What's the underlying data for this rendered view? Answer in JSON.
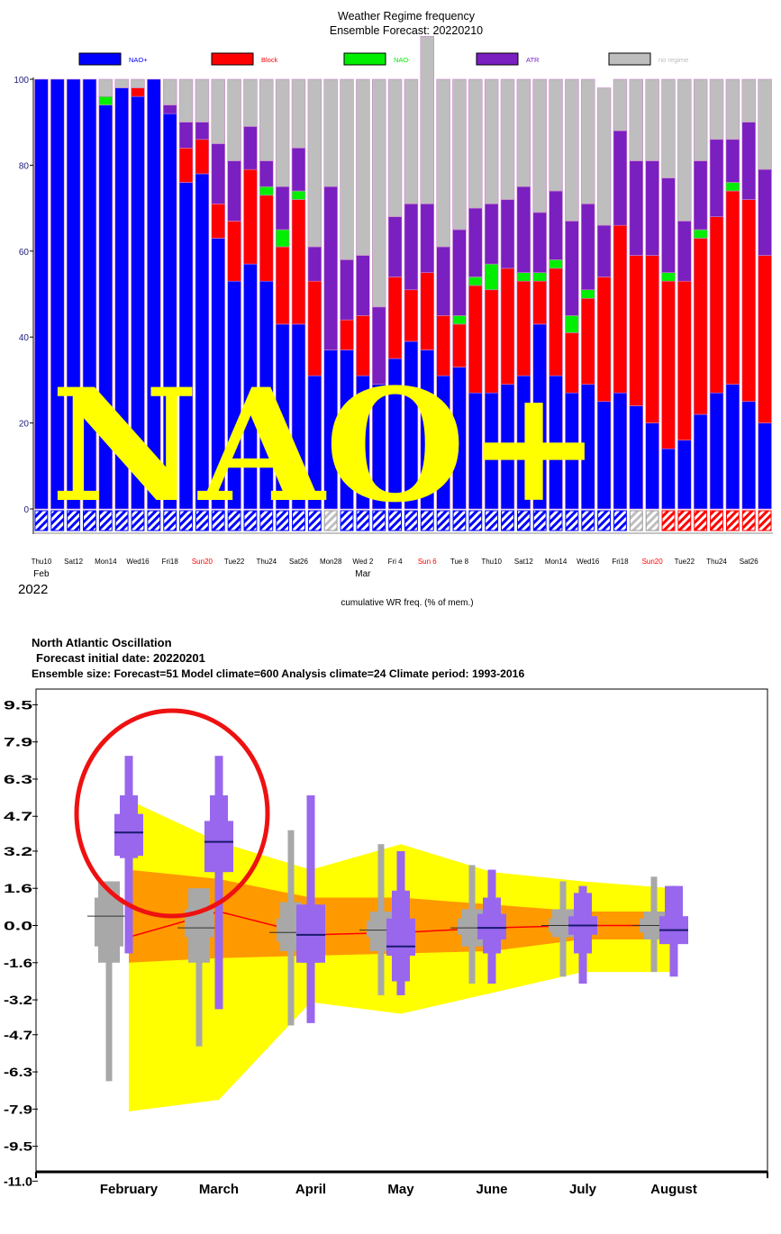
{
  "top": {
    "title": "Weather Regime frequency",
    "subtitle": "Ensemble Forecast: 20220210",
    "legend": [
      {
        "label": "NAO+",
        "color": "#0000ff"
      },
      {
        "label": "Block",
        "color": "#ff0000"
      },
      {
        "label": "NAO-",
        "color": "#00ee00"
      },
      {
        "label": "ATR",
        "color": "#7a1fc0"
      },
      {
        "label": "no regime",
        "color": "#bebebe"
      }
    ],
    "overlay_text": "NAO+",
    "x_caption": "cumulative WR freq. (% of mem.)",
    "year_label": "2022",
    "month_labels": [
      {
        "label": "Feb",
        "day_index": 0
      },
      {
        "label": "Mar",
        "day_index": 20
      }
    ]
  },
  "bottom": {
    "title": "North Atlantic Oscillation",
    "line2": "Forecast initial date: 20220201",
    "line3": "Ensemble size: Forecast=51 Model climate=600 Analysis climate=24   Climate period: 1993-2016"
  },
  "chart_data": [
    {
      "type": "bar",
      "stacked": true,
      "title": "Weather Regime frequency",
      "subtitle": "Ensemble Forecast: 20220210",
      "xlabel": "cumulative WR freq. (% of mem.)",
      "ylim": [
        -10,
        100
      ],
      "yticks": [
        0,
        20,
        40,
        60,
        80,
        100
      ],
      "tick_labels": [
        "Thu10",
        "Sat12",
        "Mon14",
        "Wed16",
        "Fri18",
        "Sun20",
        "Tue22",
        "Thu24",
        "Sat26",
        "Mon28",
        "Wed 2",
        "Fri 4",
        "Sun 6",
        "Tue 8",
        "Thu10",
        "Sat12",
        "Mon14",
        "Wed16",
        "Fri18",
        "Sun20",
        "Tue22",
        "Thu24",
        "Sat26"
      ],
      "red_tick_labels": [
        "Sun20",
        "Sun 6"
      ],
      "series_order": [
        "NAO+",
        "Block",
        "NAO-",
        "ATR",
        "no regime"
      ],
      "series": [
        {
          "name": "NAO+",
          "color": "#0000ff",
          "values": [
            100,
            100,
            100,
            100,
            94,
            98,
            96,
            100,
            92,
            76,
            78,
            63,
            53,
            57,
            53,
            43,
            43,
            31,
            37,
            37,
            31,
            29,
            35,
            39,
            37,
            31,
            33,
            27,
            27,
            29,
            31,
            43,
            31,
            27,
            29,
            25,
            27,
            24,
            20,
            14,
            16,
            22,
            27,
            29,
            25,
            20
          ]
        },
        {
          "name": "Block",
          "color": "#ff0000",
          "values": [
            0,
            0,
            0,
            0,
            0,
            0,
            2,
            0,
            0,
            8,
            8,
            8,
            14,
            22,
            20,
            18,
            29,
            22,
            0,
            7,
            14,
            0,
            19,
            12,
            18,
            14,
            10,
            25,
            24,
            27,
            22,
            10,
            25,
            14,
            20,
            29,
            39,
            35,
            39,
            39,
            37,
            41,
            41,
            45,
            47,
            39
          ]
        },
        {
          "name": "NAO-",
          "color": "#00ee00",
          "values": [
            0,
            0,
            0,
            0,
            2,
            0,
            0,
            0,
            0,
            0,
            0,
            0,
            0,
            0,
            2,
            4,
            2,
            0,
            0,
            0,
            0,
            0,
            0,
            0,
            0,
            0,
            2,
            2,
            6,
            0,
            2,
            2,
            2,
            4,
            2,
            0,
            0,
            0,
            0,
            2,
            0,
            2,
            0,
            2,
            0,
            0
          ]
        },
        {
          "name": "ATR",
          "color": "#7a1fc0",
          "values": [
            0,
            0,
            0,
            0,
            0,
            0,
            0,
            0,
            2,
            6,
            4,
            14,
            14,
            10,
            6,
            10,
            10,
            8,
            38,
            14,
            14,
            18,
            14,
            20,
            16,
            16,
            20,
            16,
            14,
            16,
            20,
            14,
            16,
            22,
            20,
            12,
            22,
            22,
            22,
            22,
            14,
            16,
            18,
            10,
            18,
            20
          ]
        },
        {
          "name": "no regime",
          "color": "#bebebe",
          "values": [
            0,
            0,
            0,
            0,
            4,
            2,
            2,
            0,
            6,
            10,
            10,
            15,
            19,
            11,
            19,
            25,
            16,
            39,
            25,
            42,
            41,
            53,
            32,
            29,
            39,
            39,
            35,
            30,
            29,
            28,
            25,
            31,
            26,
            33,
            29,
            32,
            12,
            19,
            19,
            23,
            33,
            19,
            14,
            14,
            10,
            21
          ]
        }
      ],
      "strip": [
        "nao+",
        "nao+",
        "nao+",
        "nao+",
        "nao+",
        "nao+",
        "nao+",
        "nao+",
        "nao+",
        "nao+",
        "nao+",
        "nao+",
        "nao+",
        "nao+",
        "nao+",
        "nao+",
        "nao+",
        "nao+",
        "none",
        "nao+",
        "nao+",
        "nao+",
        "nao+",
        "nao+",
        "nao+",
        "nao+",
        "nao+",
        "nao+",
        "nao+",
        "nao+",
        "nao+",
        "nao+",
        "nao+",
        "nao+",
        "nao+",
        "nao+",
        "nao+",
        "none",
        "none",
        "block",
        "block",
        "block",
        "block",
        "block",
        "block",
        "block"
      ]
    },
    {
      "type": "box",
      "title": "North Atlantic Oscillation",
      "categories": [
        "February",
        "March",
        "April",
        "May",
        "June",
        "July",
        "August"
      ],
      "yticks": [
        9.5,
        7.9,
        6.3,
        4.7,
        3.2,
        1.6,
        0.0,
        -1.6,
        -3.2,
        -4.7,
        -6.3,
        -7.9,
        -9.5,
        -11.0
      ],
      "ylim": [
        -11.0,
        10.4
      ],
      "climate_envelope_outer": {
        "upper": [
          5.4,
          3.6,
          2.4,
          3.5,
          2.3,
          1.9,
          1.6
        ],
        "lower": [
          -8.0,
          -7.5,
          -3.3,
          -3.8,
          -2.9,
          -2.0,
          -2.0
        ]
      },
      "climate_envelope_inner": {
        "upper": [
          2.4,
          2.0,
          1.2,
          1.2,
          0.9,
          0.6,
          0.6
        ],
        "lower": [
          -1.6,
          -1.4,
          -1.3,
          -1.2,
          -1.1,
          -0.6,
          -0.6
        ]
      },
      "climate_median": [
        -0.5,
        0.6,
        -0.4,
        -0.3,
        -0.1,
        0.0,
        0.0
      ],
      "model_climate": [
        {
          "whisker_low": -6.7,
          "p10": -1.6,
          "p25": -0.9,
          "median": 0.4,
          "p75": 1.2,
          "p90": 1.9,
          "whisker_high": 1.9
        },
        {
          "whisker_low": -5.2,
          "p10": -1.6,
          "p25": -0.5,
          "median": -0.1,
          "p75": 0.7,
          "p90": 1.6,
          "whisker_high": 1.6
        },
        {
          "whisker_low": -4.3,
          "p10": -1.1,
          "p25": -0.7,
          "median": -0.3,
          "p75": 0.3,
          "p90": 1.0,
          "whisker_high": 4.1
        },
        {
          "whisker_low": -3.0,
          "p10": -1.1,
          "p25": -0.5,
          "median": -0.2,
          "p75": 0.2,
          "p90": 0.6,
          "whisker_high": 3.5
        },
        {
          "whisker_low": -2.5,
          "p10": -0.9,
          "p25": -0.4,
          "median": -0.1,
          "p75": 0.3,
          "p90": 0.7,
          "whisker_high": 2.6
        },
        {
          "whisker_low": -2.2,
          "p10": -0.5,
          "p25": -0.3,
          "median": 0.0,
          "p75": 0.3,
          "p90": 0.7,
          "whisker_high": 1.9
        },
        {
          "whisker_low": -2.0,
          "p10": -0.6,
          "p25": -0.3,
          "median": 0.0,
          "p75": 0.3,
          "p90": 0.6,
          "whisker_high": 2.1
        }
      ],
      "forecast": [
        {
          "min": -1.2,
          "p10": 2.9,
          "p25": 3.0,
          "median": 4.0,
          "p75": 4.8,
          "p90": 5.6,
          "max": 7.3
        },
        {
          "min": -3.6,
          "p10": 2.3,
          "p25": 2.3,
          "median": 3.6,
          "p75": 4.5,
          "p90": 5.6,
          "max": 7.3
        },
        {
          "min": -4.2,
          "p10": -1.6,
          "p25": -1.6,
          "median": -0.4,
          "p75": 0.9,
          "p90": 0.9,
          "max": 5.6
        },
        {
          "min": -3.0,
          "p10": -2.4,
          "p25": -1.3,
          "median": -0.9,
          "p75": 0.3,
          "p90": 1.5,
          "max": 3.2
        },
        {
          "min": -2.5,
          "p10": -1.2,
          "p25": -0.6,
          "median": -0.1,
          "p75": 0.5,
          "p90": 1.2,
          "max": 2.4
        },
        {
          "min": -2.5,
          "p10": -1.2,
          "p25": -0.4,
          "median": 0.0,
          "p75": 0.4,
          "p90": 1.4,
          "max": 1.7
        },
        {
          "min": -2.2,
          "p10": -0.5,
          "p25": -0.8,
          "median": -0.2,
          "p75": 0.4,
          "p90": 1.7,
          "max": 1.7
        }
      ],
      "colors": {
        "outer": "#ffff00",
        "inner": "#ff9900",
        "median_line": "#ff0000",
        "model": "#a8a8a8",
        "forecast": "#9966ee",
        "median_bar": "#1a1a6e",
        "highlight": "#ee1111"
      }
    }
  ]
}
